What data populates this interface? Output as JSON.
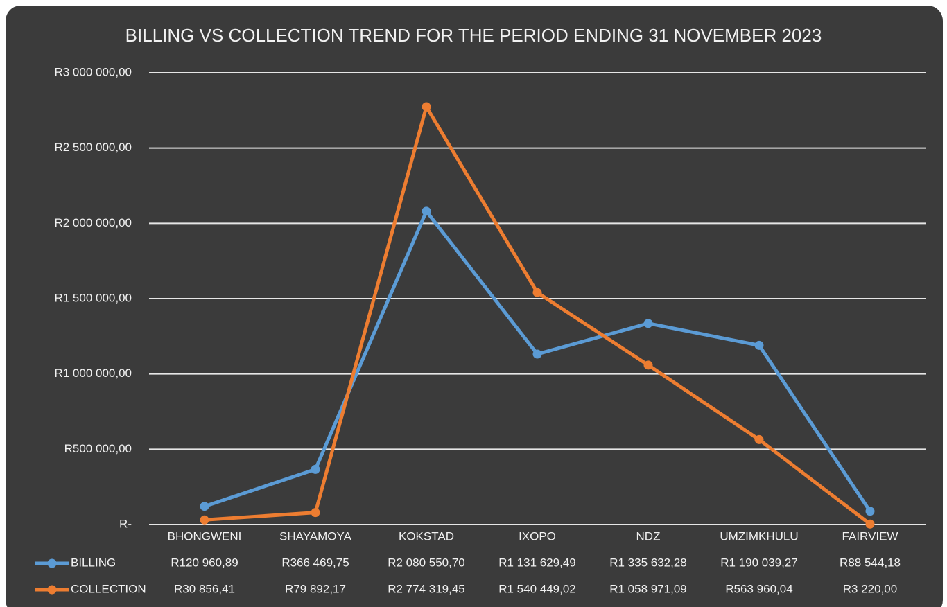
{
  "chart_data": {
    "type": "line",
    "title": "BILLING VS COLLECTION TREND FOR THE PERIOD ENDING 31 NOVEMBER 2023",
    "categories": [
      "BHONGWENI",
      "SHAYAMOYA",
      "KOKSTAD",
      "IXOPO",
      "NDZ",
      "UMZIMKHULU",
      "FAIRVIEW"
    ],
    "series": [
      {
        "name": "BILLING",
        "color": "#5b9bd5",
        "values": [
          120960.89,
          366469.75,
          2080550.7,
          1131629.49,
          1335632.28,
          1190039.27,
          88544.18
        ],
        "value_labels": [
          "R120 960,89",
          "R366 469,75",
          "R2 080 550,70",
          "R1 131 629,49",
          "R1 335 632,28",
          "R1 190 039,27",
          "R88 544,18"
        ]
      },
      {
        "name": "COLLECTION",
        "color": "#ed7d31",
        "values": [
          30856.41,
          79892.17,
          2774319.45,
          1540449.02,
          1058971.09,
          563960.04,
          3220.0
        ],
        "value_labels": [
          "R30 856,41",
          "R79 892,17",
          "R2 774 319,45",
          "R1 540 449,02",
          "R1 058 971,09",
          "R563 960,04",
          "R3 220,00"
        ]
      }
    ],
    "ylim": [
      0,
      3000000
    ],
    "yticks": [
      {
        "value": 0,
        "label": "R-"
      },
      {
        "value": 500000,
        "label": "R500 000,00"
      },
      {
        "value": 1000000,
        "label": "R1 000 000,00"
      },
      {
        "value": 1500000,
        "label": "R1 500 000,00"
      },
      {
        "value": 2000000,
        "label": "R2 000 000,00"
      },
      {
        "value": 2500000,
        "label": "R2 500 000,00"
      },
      {
        "value": 3000000,
        "label": "R3 000 000,00"
      }
    ],
    "grid": true,
    "data_table": true
  }
}
